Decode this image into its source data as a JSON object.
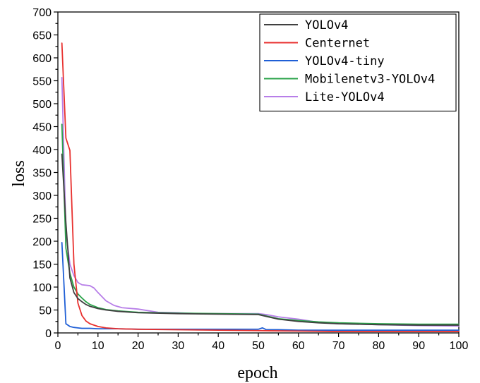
{
  "chart_data": {
    "type": "line",
    "xlabel": "epoch",
    "ylabel": "loss",
    "xlim": [
      0,
      100
    ],
    "ylim": [
      0,
      700
    ],
    "xticks": [
      0,
      10,
      20,
      30,
      40,
      50,
      60,
      70,
      80,
      90,
      100
    ],
    "yticks": [
      0,
      50,
      100,
      150,
      200,
      250,
      300,
      350,
      400,
      450,
      500,
      550,
      600,
      650,
      700
    ],
    "grid": false,
    "legend_position": "top-right",
    "series": [
      {
        "name": "YOLOv4",
        "color": "#404040",
        "x": [
          1,
          2,
          3,
          4,
          5,
          6,
          7,
          8,
          10,
          12,
          15,
          20,
          30,
          40,
          50,
          52,
          55,
          60,
          65,
          70,
          80,
          90,
          100
        ],
        "y": [
          390,
          240,
          120,
          88,
          75,
          68,
          62,
          58,
          53,
          50,
          47,
          44,
          42,
          41,
          40,
          36,
          30,
          25,
          22,
          20,
          18,
          17,
          17
        ]
      },
      {
        "name": "Centernet",
        "color": "#e8312f",
        "x": [
          1,
          2,
          3,
          4,
          5,
          6,
          7,
          8,
          10,
          12,
          15,
          20,
          30,
          40,
          50,
          60,
          70,
          80,
          90,
          100
        ],
        "y": [
          632,
          425,
          398,
          150,
          65,
          38,
          26,
          20,
          14,
          11,
          9,
          8,
          7,
          6,
          5,
          4,
          3,
          3,
          3,
          3
        ]
      },
      {
        "name": "YOLOv4-tiny",
        "color": "#1f5fd6",
        "x": [
          1,
          2,
          3,
          4,
          5,
          6,
          8,
          10,
          15,
          20,
          30,
          40,
          50,
          51,
          52,
          55,
          60,
          70,
          80,
          90,
          100
        ],
        "y": [
          197,
          20,
          14,
          12,
          11,
          10,
          10,
          9,
          9,
          8,
          8,
          8,
          8,
          11,
          7,
          7,
          6,
          6,
          6,
          6,
          6
        ]
      },
      {
        "name": "Mobilenetv3-YOLOv4",
        "color": "#2aa34a",
        "x": [
          1,
          2,
          3,
          4,
          5,
          6,
          7,
          8,
          10,
          12,
          15,
          20,
          30,
          40,
          50,
          52,
          55,
          60,
          65,
          70,
          80,
          90,
          100
        ],
        "y": [
          455,
          185,
          130,
          100,
          85,
          76,
          68,
          62,
          55,
          51,
          48,
          45,
          43,
          42,
          41,
          37,
          31,
          27,
          24,
          22,
          20,
          19,
          19
        ]
      },
      {
        "name": "Lite-YOLOv4",
        "color": "#b77ee8",
        "x": [
          1,
          2,
          3,
          4,
          5,
          6,
          7,
          8,
          9,
          10,
          12,
          14,
          16,
          20,
          25,
          30,
          35,
          40,
          45,
          50,
          52,
          55,
          60,
          65,
          70,
          80,
          90,
          100
        ],
        "y": [
          557,
          220,
          150,
          125,
          110,
          105,
          104,
          103,
          98,
          88,
          70,
          60,
          55,
          52,
          45,
          44,
          42,
          42,
          42,
          42,
          40,
          35,
          30,
          23,
          20,
          18,
          16,
          15
        ]
      }
    ]
  }
}
